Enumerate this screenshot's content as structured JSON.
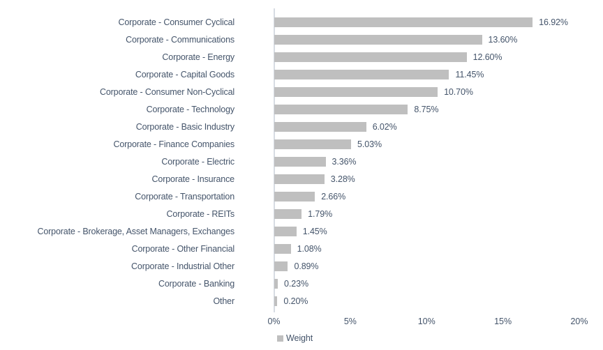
{
  "chart_data": {
    "type": "bar",
    "orientation": "horizontal",
    "title": "",
    "xlabel": "",
    "ylabel": "",
    "categories": [
      "Corporate - Consumer Cyclical",
      "Corporate - Communications",
      "Corporate - Energy",
      "Corporate - Capital Goods",
      "Corporate - Consumer Non-Cyclical",
      "Corporate - Technology",
      "Corporate - Basic Industry",
      "Corporate - Finance Companies",
      "Corporate - Electric",
      "Corporate - Insurance",
      "Corporate - Transportation",
      "Corporate - REITs",
      "Corporate - Brokerage, Asset Managers, Exchanges",
      "Corporate - Other Financial",
      "Corporate - Industrial Other",
      "Corporate - Banking",
      "Other"
    ],
    "values": [
      16.92,
      13.6,
      12.6,
      11.45,
      10.7,
      8.75,
      6.02,
      5.03,
      3.36,
      3.28,
      2.66,
      1.79,
      1.45,
      1.08,
      0.89,
      0.23,
      0.2
    ],
    "value_labels": [
      "16.92%",
      "13.60%",
      "12.60%",
      "11.45%",
      "10.70%",
      "8.75%",
      "6.02%",
      "5.03%",
      "3.36%",
      "3.28%",
      "2.66%",
      "1.79%",
      "1.45%",
      "1.08%",
      "0.89%",
      "0.23%",
      "0.20%"
    ],
    "series_name": "Weight",
    "xlim": [
      0,
      20
    ],
    "x_ticks": [
      {
        "value": 0,
        "label": "0%"
      },
      {
        "value": 5,
        "label": "5%"
      },
      {
        "value": 10,
        "label": "10%"
      },
      {
        "value": 15,
        "label": "15%"
      },
      {
        "value": 20,
        "label": "20%"
      }
    ],
    "grid": false,
    "legend": {
      "label": "Weight",
      "position": "bottom-center"
    },
    "colors": {
      "bar": "#bfbfbf",
      "text": "#44546a",
      "axis_line": "#d7dce3",
      "background": "#ffffff"
    }
  }
}
